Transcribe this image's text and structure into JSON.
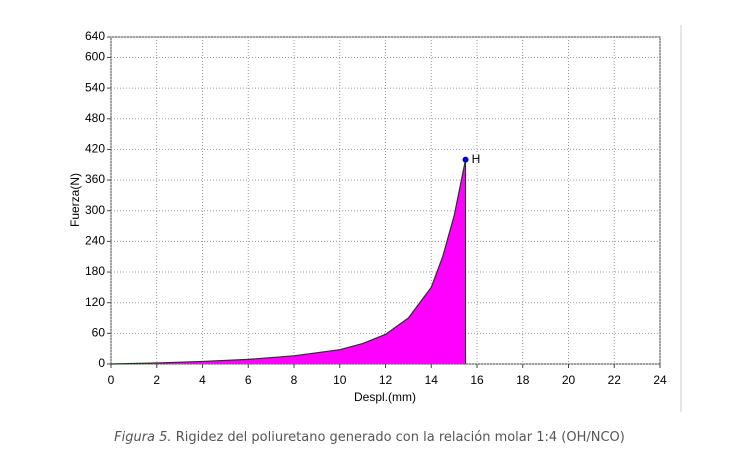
{
  "chart_data": {
    "type": "area",
    "x_label": "Despl.(mm)",
    "y_label": "Fuerza(N)",
    "x": [
      0,
      1,
      2,
      4,
      6,
      8,
      10,
      11,
      12,
      13,
      14,
      14.5,
      15,
      15.5
    ],
    "values": [
      0,
      1,
      2,
      5,
      9,
      16,
      28,
      40,
      58,
      90,
      150,
      210,
      290,
      400
    ],
    "color": "#ff00ff",
    "line_color": "#1a3a1a",
    "point": {
      "label": "H",
      "x": 15.5,
      "y": 400,
      "color": "#0000cc"
    },
    "xlim": [
      0,
      24
    ],
    "xticks": [
      0,
      2,
      4,
      6,
      8,
      10,
      12,
      14,
      16,
      18,
      20,
      22,
      24
    ],
    "ylim": [
      0,
      640
    ],
    "yticks": [
      0,
      60,
      120,
      180,
      240,
      300,
      360,
      420,
      480,
      540,
      600,
      640
    ],
    "grid": true
  },
  "caption": {
    "label": "Figura 5.",
    "text": "Rigidez del poliuretano generado con la relación molar 1:4 (OH/NCO)"
  }
}
